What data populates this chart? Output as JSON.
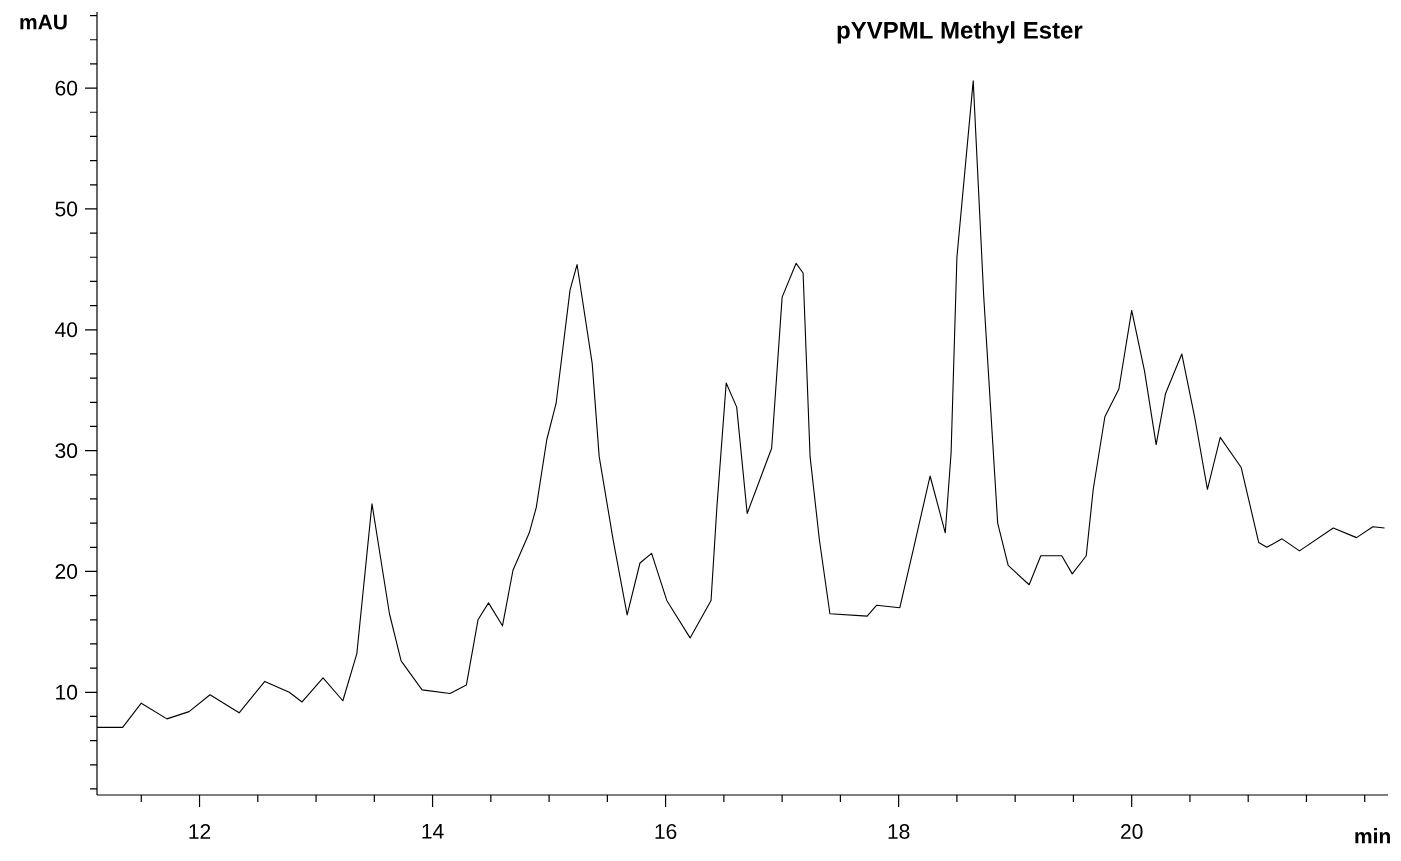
{
  "chart_data": {
    "type": "line",
    "title": "pYVPML Methyl Ester",
    "xlabel": "min",
    "ylabel": "mAU",
    "xlim": [
      11.12,
      22.2
    ],
    "ylim": [
      1.5,
      66.3
    ],
    "xticks": [
      {
        "value": 11.5,
        "label": null
      },
      12,
      {
        "value": 12.5,
        "label": null
      },
      14,
      {
        "value": 13,
        "label": null
      },
      {
        "value": 13.5,
        "label": null
      },
      {
        "value": 14.5,
        "label": null
      },
      16,
      {
        "value": 15,
        "label": null
      },
      {
        "value": 15.5,
        "label": null
      },
      {
        "value": 16.5,
        "label": null
      },
      18,
      {
        "value": 17,
        "label": null
      },
      {
        "value": 17.5,
        "label": null
      },
      {
        "value": 18.5,
        "label": null
      },
      20,
      {
        "value": 19,
        "label": null
      },
      {
        "value": 19.5,
        "label": null
      },
      {
        "value": 20.5,
        "label": null
      },
      {
        "value": 21,
        "label": null
      },
      {
        "value": 21.5,
        "label": null
      },
      {
        "value": 22,
        "label": null
      }
    ],
    "yticks": [
      10,
      20,
      30,
      40,
      50,
      60,
      {
        "value": 2,
        "label": null
      },
      {
        "value": 4,
        "label": null
      },
      {
        "value": 6,
        "label": null
      },
      {
        "value": 8,
        "label": null
      },
      {
        "value": 12,
        "label": null
      },
      {
        "value": 14,
        "label": null
      },
      {
        "value": 16,
        "label": null
      },
      {
        "value": 18,
        "label": null
      },
      {
        "value": 22,
        "label": null
      },
      {
        "value": 24,
        "label": null
      },
      {
        "value": 26,
        "label": null
      },
      {
        "value": 28,
        "label": null
      },
      {
        "value": 32,
        "label": null
      },
      {
        "value": 34,
        "label": null
      },
      {
        "value": 36,
        "label": null
      },
      {
        "value": 38,
        "label": null
      },
      {
        "value": 42,
        "label": null
      },
      {
        "value": 44,
        "label": null
      },
      {
        "value": 46,
        "label": null
      },
      {
        "value": 48,
        "label": null
      },
      {
        "value": 52,
        "label": null
      },
      {
        "value": 54,
        "label": null
      },
      {
        "value": 56,
        "label": null
      },
      {
        "value": 58,
        "label": null
      },
      {
        "value": 62,
        "label": null
      },
      {
        "value": 64,
        "label": null
      },
      {
        "value": 66,
        "label": null
      }
    ],
    "series": [
      {
        "color": "#000000",
        "x": [
          11.12,
          11.34,
          11.5,
          11.72,
          11.91,
          12.09,
          12.34,
          12.56,
          12.77,
          12.88,
          13.06,
          13.23,
          13.35,
          13.48,
          13.63,
          13.73,
          13.91,
          14.15,
          14.29,
          14.39,
          14.48,
          14.6,
          14.69,
          14.83,
          14.89,
          14.98,
          15.06,
          15.18,
          15.24,
          15.37,
          15.43,
          15.55,
          15.67,
          15.78,
          15.88,
          16.01,
          16.21,
          16.39,
          16.44,
          16.52,
          16.61,
          16.7,
          16.91,
          17.0,
          17.12,
          17.18,
          17.24,
          17.32,
          17.41,
          17.73,
          17.81,
          18.01,
          18.13,
          18.27,
          18.4,
          18.45,
          18.5,
          18.64,
          18.73,
          18.85,
          18.94,
          19.12,
          19.22,
          19.4,
          19.49,
          19.61,
          19.67,
          19.77,
          19.89,
          20.0,
          20.11,
          20.21,
          20.29,
          20.43,
          20.54,
          20.65,
          20.76,
          20.94,
          21.09,
          21.16,
          21.29,
          21.44,
          21.73,
          21.93,
          22.07,
          22.17
        ],
        "values": [
          7.1,
          7.1,
          9.1,
          7.8,
          8.4,
          9.8,
          8.3,
          10.9,
          10.0,
          9.2,
          11.2,
          9.3,
          13.2,
          25.6,
          16.5,
          12.6,
          10.2,
          9.9,
          10.6,
          16.0,
          17.4,
          15.5,
          20.1,
          23.2,
          25.3,
          30.9,
          33.9,
          43.3,
          45.4,
          37.2,
          29.5,
          22.6,
          16.4,
          20.7,
          21.5,
          17.6,
          14.5,
          17.6,
          25.3,
          35.6,
          33.6,
          24.8,
          30.2,
          42.7,
          45.5,
          44.7,
          29.5,
          22.6,
          16.5,
          16.3,
          17.2,
          17.0,
          22.0,
          27.9,
          23.2,
          29.8,
          46.0,
          60.6,
          42.8,
          24.0,
          20.5,
          18.9,
          21.3,
          21.3,
          19.8,
          21.3,
          26.8,
          32.8,
          35.1,
          41.6,
          36.6,
          30.5,
          34.7,
          38.0,
          32.8,
          26.8,
          31.1,
          28.6,
          22.4,
          22.0,
          22.7,
          21.7,
          23.6,
          22.8,
          23.7,
          23.6
        ]
      }
    ]
  }
}
